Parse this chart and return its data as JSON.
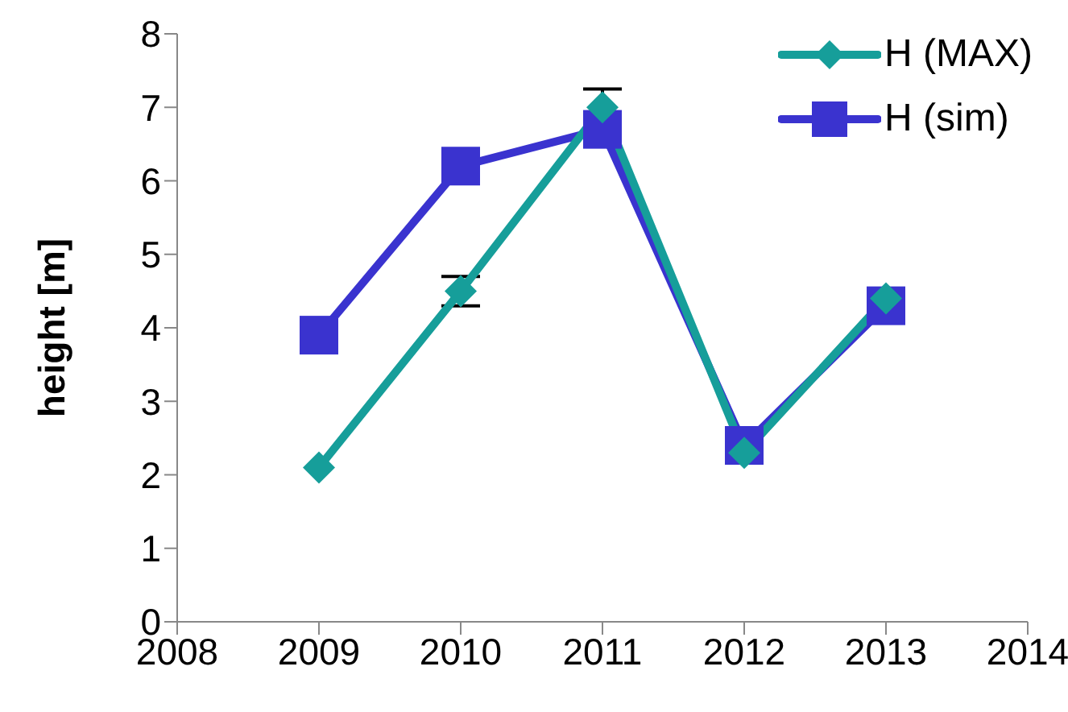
{
  "chart_data": {
    "type": "line",
    "ylabel": "height [m]",
    "x": [
      2009,
      2010,
      2011,
      2012,
      2013
    ],
    "series": [
      {
        "name": "H (MAX)",
        "color": "#169e9a",
        "marker": "diamond",
        "values": [
          2.1,
          4.5,
          7.0,
          2.3,
          4.4
        ],
        "errors": [
          null,
          0.2,
          0.25,
          null,
          null
        ]
      },
      {
        "name": "H (sim)",
        "color": "#3a33cf",
        "marker": "square",
        "values": [
          3.9,
          6.2,
          6.7,
          2.4,
          4.3
        ]
      }
    ],
    "xlim": [
      2008,
      2014
    ],
    "xticks": [
      2008,
      2009,
      2010,
      2011,
      2012,
      2013,
      2014
    ],
    "ylim": [
      0,
      8
    ],
    "yticks": [
      0,
      1,
      2,
      3,
      4,
      5,
      6,
      7,
      8
    ],
    "grid": false,
    "legend": "top right"
  }
}
